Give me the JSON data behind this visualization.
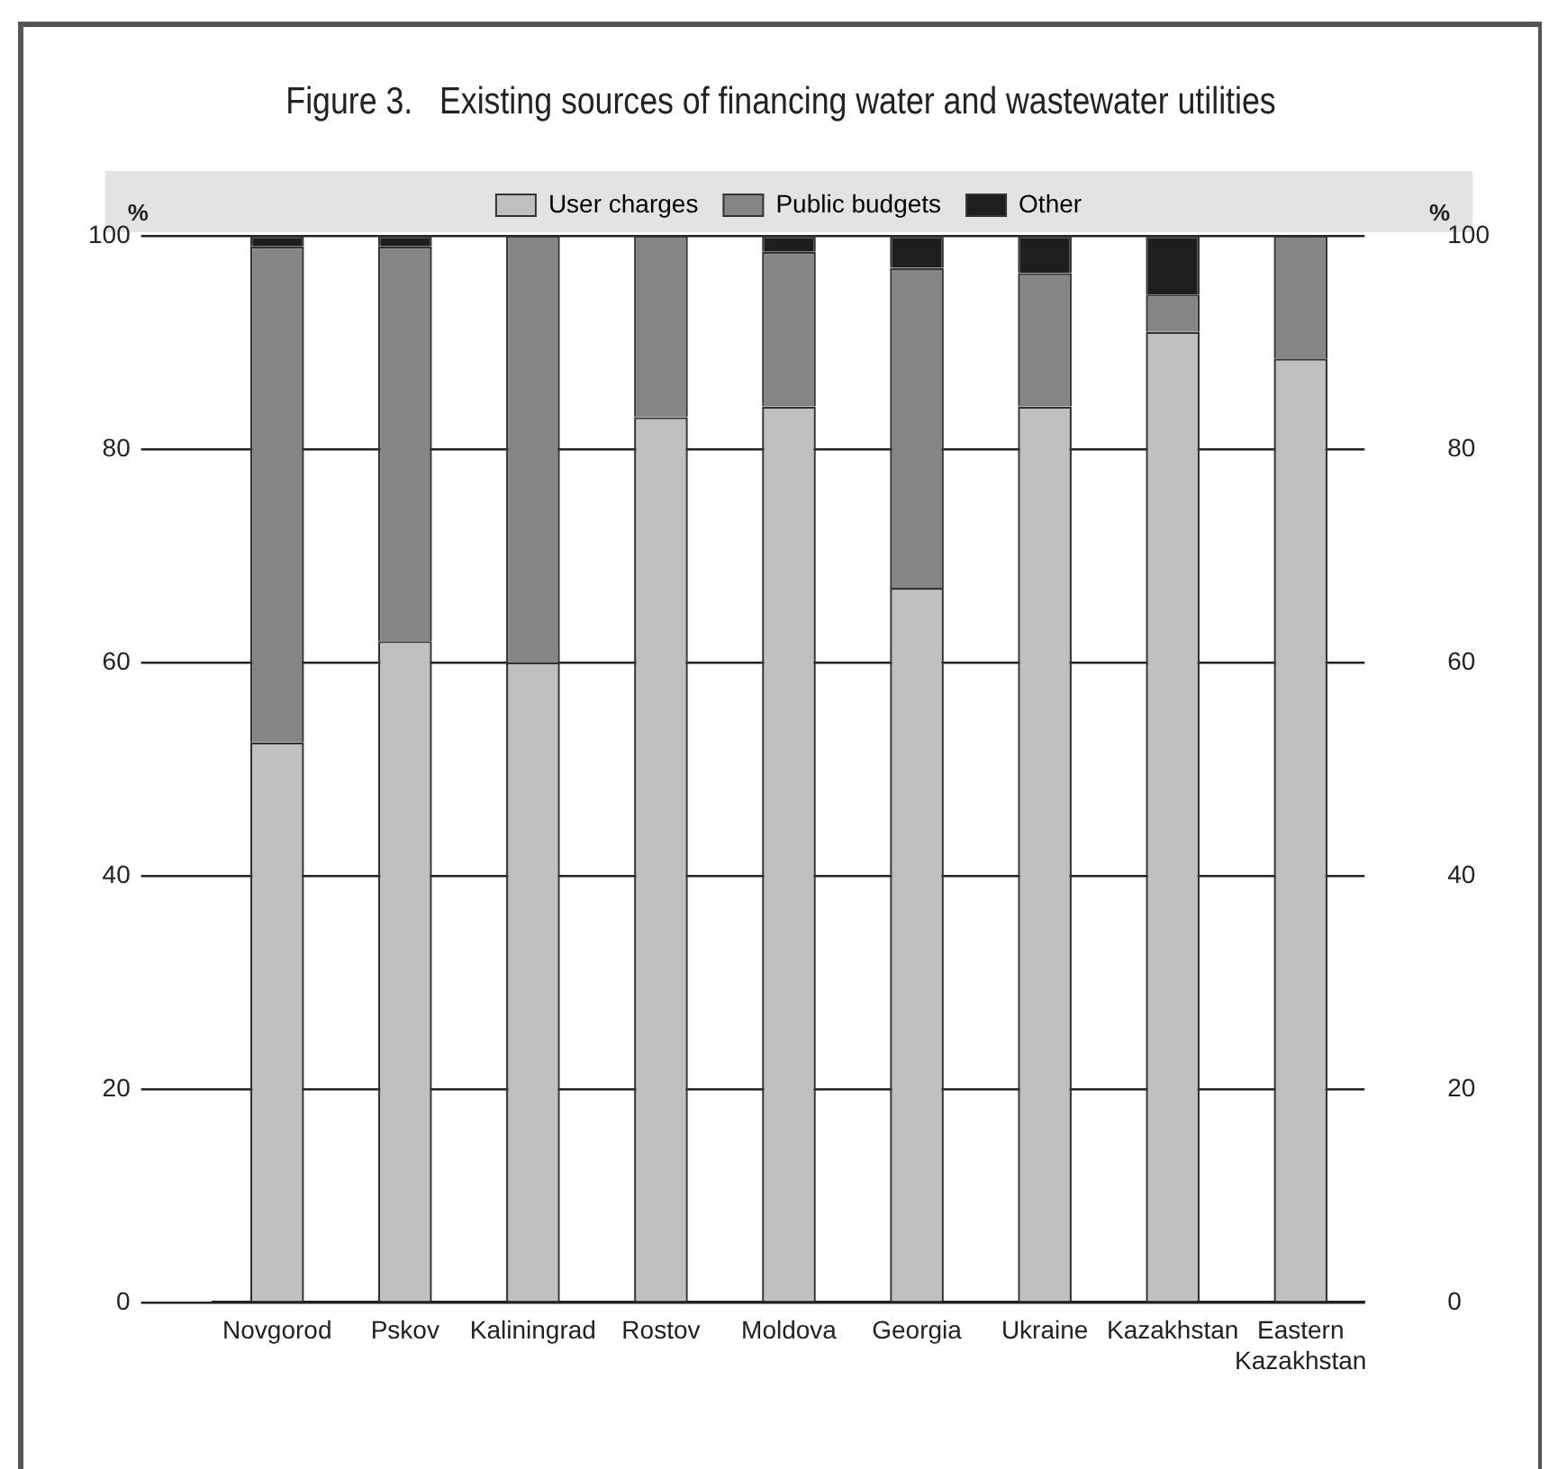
{
  "chart_data": {
    "type": "bar",
    "stacked": true,
    "title": "Figure 3.   Existing sources of financing water and wastewater utilities",
    "ylabel": "%",
    "y2label": "%",
    "categories": [
      "Novgorod",
      "Pskov",
      "Kaliningrad",
      "Rostov",
      "Moldova",
      "Georgia",
      "Ukraine",
      "Kazakhstan",
      "Eastern Kazakhstan"
    ],
    "series": [
      {
        "name": "User charges",
        "color": "#c0c0c0",
        "values": [
          52.5,
          62,
          60,
          83,
          84,
          67,
          84,
          91,
          88.5
        ]
      },
      {
        "name": "Public budgets",
        "color": "#858585",
        "values": [
          46.5,
          37,
          40,
          17,
          14.5,
          30,
          12.5,
          3.5,
          11.5
        ]
      },
      {
        "name": "Other",
        "color": "#1e1e1e",
        "values": [
          1,
          1,
          0,
          0,
          1.5,
          3,
          3.5,
          5.5,
          0
        ]
      }
    ],
    "ylim": [
      0,
      100
    ],
    "yticks": [
      0,
      20,
      40,
      60,
      80,
      100
    ],
    "y2lim": [
      0,
      100
    ],
    "y2ticks": [
      0,
      20,
      40,
      60,
      80,
      100
    ],
    "grid": "y",
    "legend": "top"
  }
}
